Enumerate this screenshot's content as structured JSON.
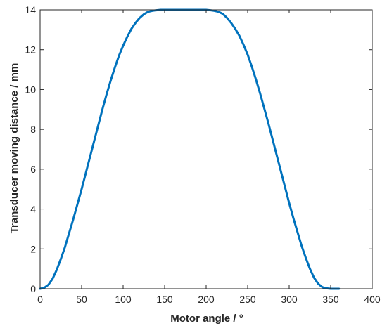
{
  "chart_data": {
    "type": "line",
    "title": "",
    "xlabel": "Motor angle / °",
    "ylabel": "Transducer moving distance / mm",
    "xlim": [
      0,
      400
    ],
    "ylim": [
      0,
      14
    ],
    "xticks": [
      0,
      50,
      100,
      150,
      200,
      250,
      300,
      350,
      400
    ],
    "yticks": [
      0,
      2,
      4,
      6,
      8,
      10,
      12,
      14
    ],
    "grid": false,
    "legend": "none",
    "line_color": "#0072BD",
    "series": [
      {
        "x": [
          0,
          5,
          10,
          15,
          20,
          25,
          30,
          35,
          40,
          45,
          50,
          55,
          60,
          65,
          70,
          75,
          80,
          85,
          90,
          95,
          100,
          105,
          110,
          115,
          120,
          125,
          130,
          135,
          140,
          145,
          150,
          155,
          160,
          170,
          180,
          190,
          200,
          205,
          210,
          215,
          220,
          225,
          230,
          235,
          240,
          245,
          250,
          255,
          260,
          265,
          270,
          275,
          280,
          285,
          290,
          295,
          300,
          305,
          310,
          315,
          320,
          325,
          330,
          335,
          340,
          345,
          350,
          355,
          360
        ],
        "y": [
          0,
          0.05,
          0.2,
          0.5,
          0.95,
          1.5,
          2.1,
          2.8,
          3.5,
          4.25,
          5.0,
          5.8,
          6.6,
          7.4,
          8.2,
          9.0,
          9.75,
          10.45,
          11.1,
          11.7,
          12.2,
          12.65,
          13.05,
          13.35,
          13.6,
          13.78,
          13.9,
          13.95,
          13.98,
          14.0,
          14.0,
          14.0,
          14.0,
          14.0,
          14.0,
          14.0,
          14.0,
          13.98,
          13.95,
          13.9,
          13.8,
          13.6,
          13.35,
          13.05,
          12.7,
          12.25,
          11.75,
          11.15,
          10.5,
          9.8,
          9.05,
          8.3,
          7.5,
          6.7,
          5.9,
          5.1,
          4.3,
          3.55,
          2.85,
          2.15,
          1.55,
          1.0,
          0.55,
          0.25,
          0.08,
          0.02,
          0.0,
          0.0,
          0.0
        ]
      }
    ]
  }
}
